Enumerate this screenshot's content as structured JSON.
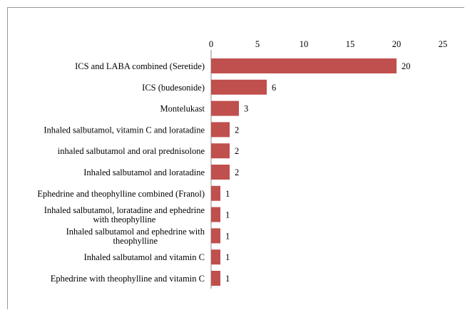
{
  "chart_data": {
    "type": "bar",
    "orientation": "horizontal",
    "title": "",
    "xlabel": "",
    "ylabel": "",
    "xlim": [
      0,
      25
    ],
    "x_ticks": [
      0,
      5,
      10,
      15,
      20,
      25
    ],
    "x_axis_position": "top",
    "grid": false,
    "legend": "none",
    "bar_color": "#c0504d",
    "categories": [
      "ICS and LABA combined (Seretide)",
      "ICS (budesonide)",
      "Montelukast",
      "Inhaled salbutamol, vitamin C and loratadine",
      "inhaled salbutamol and oral prednisolone",
      "Inhaled salbutamol and loratadine",
      "Ephedrine and theophylline combined (Franol)",
      "Inhaled salbutamol, loratadine and  ephedrine with theophylline",
      "Inhaled salbutamol and  ephedrine with theophylline",
      "Inhaled salbutamol and vitamin C",
      "Ephedrine with theophylline and vitamin C"
    ],
    "values": [
      20,
      6,
      3,
      2,
      2,
      2,
      1,
      1,
      1,
      1,
      1
    ]
  }
}
